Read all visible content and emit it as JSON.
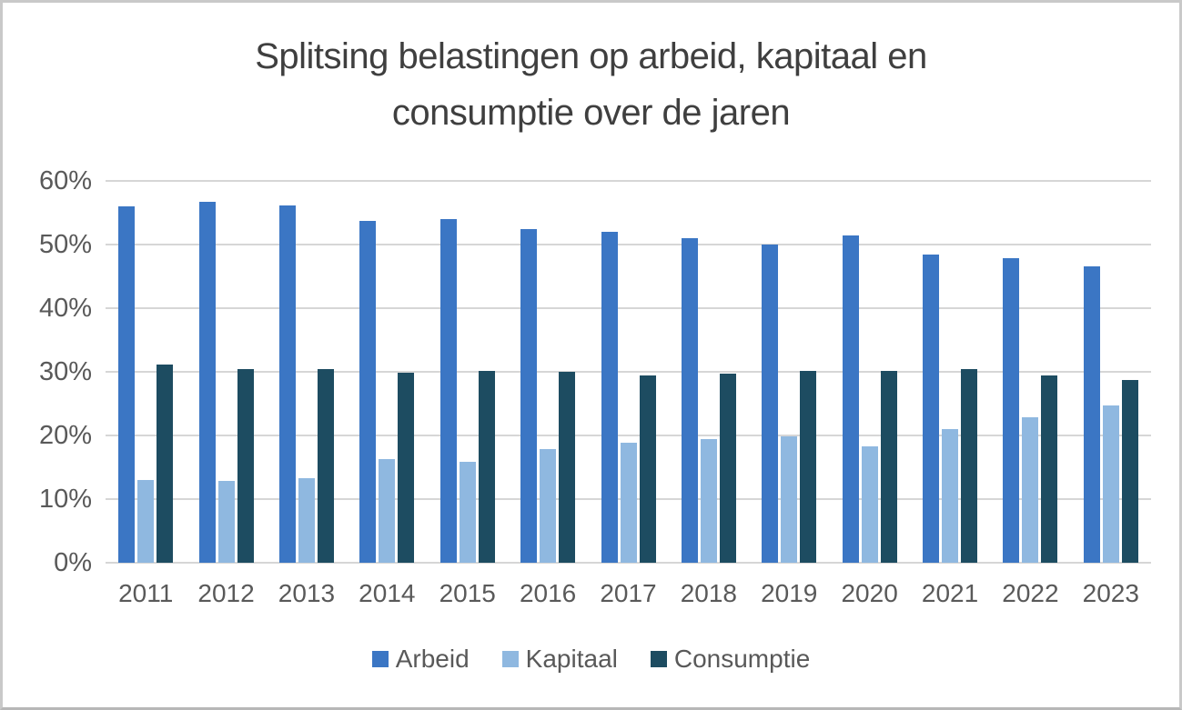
{
  "chart_data": {
    "type": "bar",
    "title": {
      "text": "Splitsing belastingen op arbeid, kapitaal en consumptie over de jaren",
      "lines": [
        "Splitsing belastingen op arbeid, kapitaal en",
        "consumptie over de jaren"
      ]
    },
    "categories": [
      "2011",
      "2012",
      "2013",
      "2014",
      "2015",
      "2016",
      "2017",
      "2018",
      "2019",
      "2020",
      "2021",
      "2022",
      "2023"
    ],
    "series": [
      {
        "name": "Arbeid",
        "color": "#3B76C4",
        "values": [
          56.0,
          56.7,
          56.2,
          53.7,
          54.0,
          52.5,
          52.0,
          51.0,
          50.0,
          51.5,
          48.5,
          47.8,
          46.6
        ]
      },
      {
        "name": "Kapitaal",
        "color": "#8FB8E0",
        "values": [
          13.0,
          12.8,
          13.3,
          16.3,
          15.8,
          17.8,
          18.8,
          19.5,
          19.8,
          18.3,
          21.0,
          22.8,
          24.7
        ]
      },
      {
        "name": "Consumptie",
        "color": "#1D4C61",
        "values": [
          31.1,
          30.5,
          30.4,
          29.9,
          30.2,
          30.0,
          29.5,
          29.7,
          30.2,
          30.2,
          30.5,
          29.4,
          28.7
        ]
      }
    ],
    "axis": {
      "ylim": [
        0,
        60
      ],
      "y_step": 10,
      "y_tick_labels": [
        "0%",
        "10%",
        "20%",
        "30%",
        "40%",
        "50%",
        "60%"
      ],
      "grid": true
    },
    "legend": {
      "position": "bottom",
      "labels": [
        "Arbeid",
        "Kapitaal",
        "Consumptie"
      ]
    },
    "colors": {
      "grid": "#D6D6D6",
      "axis_text": "#595959",
      "title_text": "#3F3F3F",
      "background": "#FFFFFF",
      "frame": "#C9C9C9"
    }
  }
}
